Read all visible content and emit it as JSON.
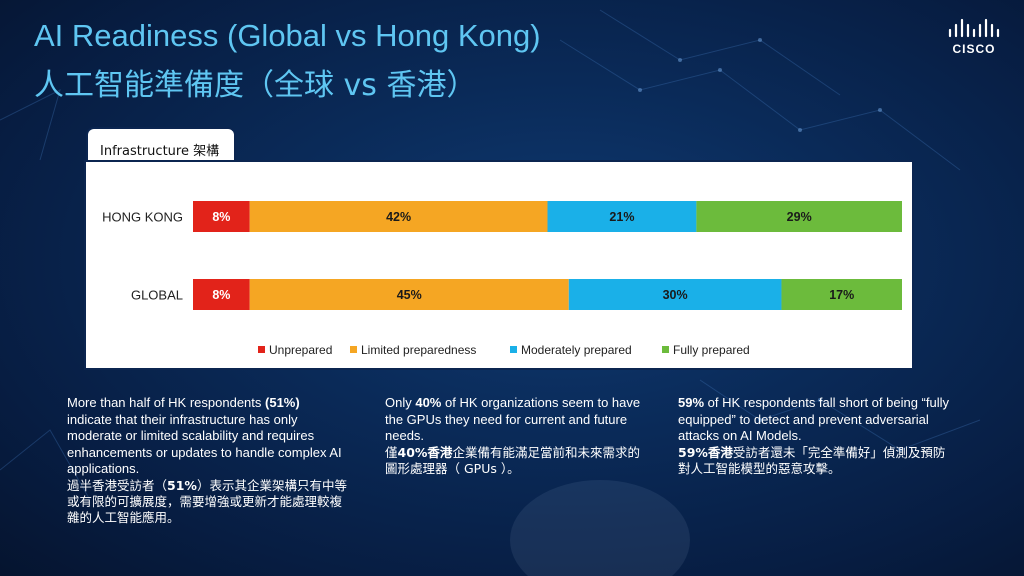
{
  "title": {
    "en": "AI Readiness (Global vs Hong Kong)",
    "zh": "人工智能準備度（全球 vs 香港）"
  },
  "logo": {
    "text": "CISCO",
    "icon": "cisco-bridge-logo"
  },
  "panel": {
    "tab_label": "Infrastructure 架構"
  },
  "chart_data": {
    "type": "bar",
    "orientation": "horizontal-stacked-100",
    "categories": [
      "HONG KONG",
      "GLOBAL"
    ],
    "series": [
      {
        "name": "Unprepared",
        "values": [
          8,
          8
        ],
        "color": "#e2231a"
      },
      {
        "name": "Limited preparedness",
        "values": [
          42,
          45
        ],
        "color": "#f5a623"
      },
      {
        "name": "Moderately prepared",
        "values": [
          21,
          30
        ],
        "color": "#1ab0e8"
      },
      {
        "name": "Fully prepared",
        "values": [
          29,
          17
        ],
        "color": "#6cbb3c"
      }
    ],
    "value_suffix": "%",
    "xlim": [
      0,
      100
    ],
    "legend": "bottom",
    "grid": false
  },
  "notes": [
    {
      "en_parts": [
        "More than half of HK respondents ",
        "(51%)",
        " indicate that their infrastructure has only moderate or limited scalability and requires enhancements or updates to handle complex AI applications."
      ],
      "zh_parts": [
        "過半香港受訪者（",
        "51%",
        "）表示其企業架構只有中等或有限的可擴展度，需要增強或更新才能處理較複雜的人工智能應用。"
      ]
    },
    {
      "en_parts": [
        "Only ",
        "40%",
        " of HK organizations seem to have the GPUs they need for current and future needs."
      ],
      "zh_parts": [
        "僅",
        "40%香港",
        "企業備有能滿足當前和未來需求的圖形處理器（ GPUs ）。"
      ]
    },
    {
      "en_parts": [
        "",
        "59%",
        " of HK respondents fall short of being “fully equipped” to detect and prevent adversarial attacks on AI Models."
      ],
      "zh_parts": [
        "",
        "59%香港",
        "受訪者還未「完全準備好」偵測及預防對人工智能模型的惡意攻擊。"
      ]
    }
  ]
}
